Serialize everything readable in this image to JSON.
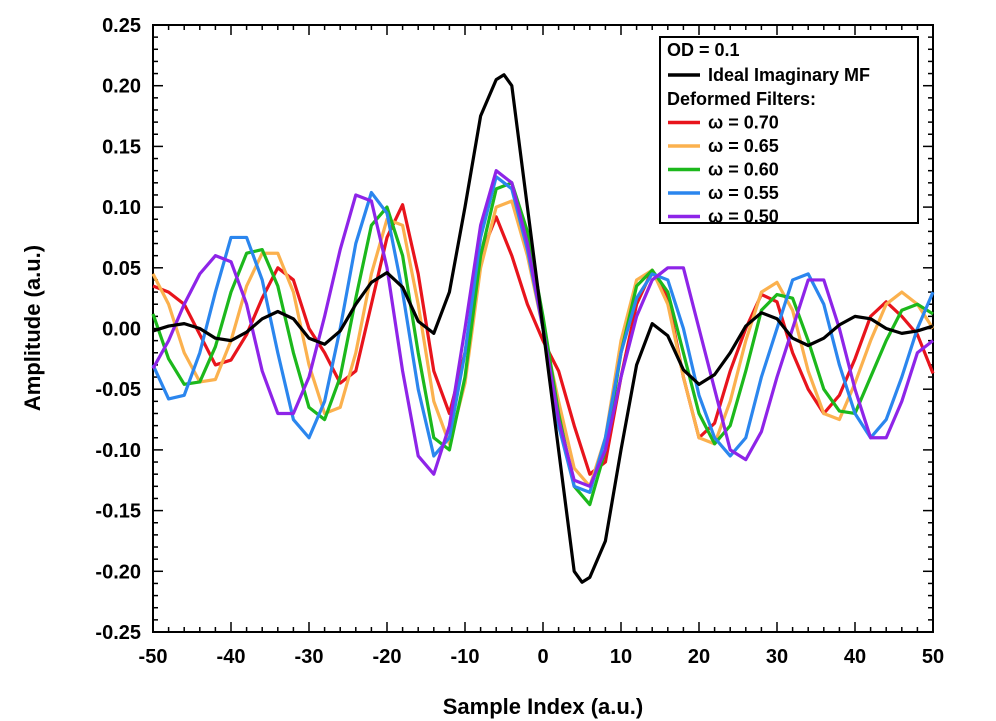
{
  "chart_data": {
    "type": "line",
    "title": "",
    "xlabel": "Sample Index (a.u.)",
    "ylabel": "Amplitude (a.u.)",
    "xlim": [
      -50,
      50
    ],
    "ylim": [
      -0.25,
      0.25
    ],
    "x_ticks": [
      -50,
      -40,
      -30,
      -20,
      -10,
      0,
      10,
      20,
      30,
      40,
      50
    ],
    "x_tick_labels": [
      "-50",
      "-40",
      "-30",
      "-20",
      "-10",
      "0",
      "10",
      "20",
      "30",
      "40",
      "50"
    ],
    "y_ticks": [
      -0.25,
      -0.2,
      -0.15,
      -0.1,
      -0.05,
      0,
      0.05,
      0.1,
      0.15,
      0.2,
      0.25
    ],
    "y_tick_labels": [
      "-0.25",
      "-0.20",
      "-0.15",
      "-0.10",
      "-0.05",
      "0.00",
      "0.05",
      "0.10",
      "0.15",
      "0.20",
      "0.25"
    ],
    "grid": false,
    "legend": {
      "position": "top-right",
      "header": "OD = 0.1",
      "subheader": "Deformed Filters:"
    },
    "series": [
      {
        "name": "Ideal Imaginary MF",
        "color": "#000000",
        "x": [
          -50,
          -48,
          -46,
          -44,
          -42,
          -40,
          -38,
          -36,
          -34,
          -32,
          -30,
          -28,
          -26,
          -24,
          -22,
          -20,
          -18,
          -16,
          -14,
          -12,
          -10,
          -8,
          -6,
          -5,
          -4,
          -2,
          0,
          2,
          4,
          5,
          6,
          8,
          10,
          12,
          14,
          16,
          18,
          20,
          22,
          24,
          26,
          28,
          30,
          32,
          34,
          36,
          38,
          40,
          42,
          44,
          46,
          48,
          50
        ],
        "y": [
          -0.002,
          0.002,
          0.004,
          0.0,
          -0.008,
          -0.01,
          -0.003,
          0.008,
          0.014,
          0.008,
          -0.008,
          -0.013,
          -0.002,
          0.02,
          0.038,
          0.046,
          0.034,
          0.006,
          -0.004,
          0.03,
          0.1,
          0.175,
          0.205,
          0.209,
          0.2,
          0.1,
          0.0,
          -0.1,
          -0.2,
          -0.209,
          -0.205,
          -0.175,
          -0.1,
          -0.03,
          0.004,
          -0.006,
          -0.034,
          -0.046,
          -0.038,
          -0.02,
          0.002,
          0.013,
          0.008,
          -0.008,
          -0.014,
          -0.008,
          0.003,
          0.01,
          0.008,
          0.0,
          -0.004,
          -0.002,
          0.002
        ]
      },
      {
        "name": "ω = 0.70",
        "color": "#e8141c",
        "x": [
          -50,
          -48,
          -46,
          -44,
          -42,
          -40,
          -38,
          -36,
          -34,
          -32,
          -30,
          -28,
          -26,
          -24,
          -22,
          -20,
          -18,
          -16,
          -14,
          -12,
          -10,
          -8,
          -6,
          -4,
          -2,
          0,
          2,
          4,
          6,
          8,
          10,
          12,
          14,
          16,
          18,
          20,
          22,
          24,
          26,
          28,
          30,
          32,
          34,
          36,
          38,
          40,
          42,
          44,
          46,
          48,
          50
        ],
        "y": [
          0.035,
          0.03,
          0.02,
          -0.005,
          -0.03,
          -0.026,
          -0.005,
          0.025,
          0.05,
          0.04,
          0.0,
          -0.02,
          -0.045,
          -0.035,
          0.02,
          0.075,
          0.102,
          0.045,
          -0.035,
          -0.07,
          -0.02,
          0.06,
          0.092,
          0.06,
          0.02,
          -0.01,
          -0.035,
          -0.08,
          -0.12,
          -0.11,
          -0.04,
          0.02,
          0.048,
          0.025,
          -0.04,
          -0.09,
          -0.078,
          -0.035,
          0.0,
          0.028,
          0.022,
          -0.02,
          -0.05,
          -0.07,
          -0.055,
          -0.025,
          0.01,
          0.022,
          0.01,
          -0.005,
          -0.037
        ]
      },
      {
        "name": "ω = 0.65",
        "color": "#fbb14e",
        "x": [
          -50,
          -48,
          -46,
          -44,
          -42,
          -40,
          -38,
          -36,
          -34,
          -32,
          -30,
          -28,
          -26,
          -24,
          -22,
          -20,
          -18,
          -16,
          -14,
          -12,
          -10,
          -8,
          -6,
          -4,
          -2,
          0,
          2,
          4,
          6,
          8,
          10,
          12,
          14,
          16,
          18,
          20,
          22,
          24,
          26,
          28,
          30,
          32,
          34,
          36,
          38,
          40,
          42,
          44,
          46,
          48,
          50
        ],
        "y": [
          0.045,
          0.02,
          -0.02,
          -0.044,
          -0.042,
          -0.01,
          0.035,
          0.062,
          0.062,
          0.03,
          -0.03,
          -0.07,
          -0.065,
          -0.02,
          0.045,
          0.09,
          0.085,
          0.02,
          -0.06,
          -0.095,
          -0.045,
          0.05,
          0.1,
          0.105,
          0.06,
          0.0,
          -0.06,
          -0.115,
          -0.13,
          -0.09,
          -0.01,
          0.04,
          0.048,
          0.02,
          -0.04,
          -0.09,
          -0.095,
          -0.06,
          -0.01,
          0.03,
          0.038,
          0.015,
          -0.035,
          -0.07,
          -0.075,
          -0.045,
          -0.01,
          0.02,
          0.03,
          0.02,
          0.0
        ]
      },
      {
        "name": "ω = 0.60",
        "color": "#1cb81c",
        "x": [
          -50,
          -48,
          -46,
          -44,
          -42,
          -40,
          -38,
          -36,
          -34,
          -32,
          -30,
          -28,
          -26,
          -24,
          -22,
          -20,
          -18,
          -16,
          -14,
          -12,
          -10,
          -8,
          -6,
          -4,
          -2,
          0,
          2,
          4,
          6,
          8,
          10,
          12,
          14,
          16,
          18,
          20,
          22,
          24,
          26,
          28,
          30,
          32,
          34,
          36,
          38,
          40,
          42,
          44,
          46,
          48,
          50
        ],
        "y": [
          0.012,
          -0.025,
          -0.046,
          -0.044,
          -0.015,
          0.03,
          0.062,
          0.065,
          0.035,
          -0.02,
          -0.065,
          -0.075,
          -0.04,
          0.025,
          0.085,
          0.1,
          0.06,
          -0.02,
          -0.09,
          -0.1,
          -0.04,
          0.06,
          0.115,
          0.12,
          0.08,
          0.01,
          -0.07,
          -0.13,
          -0.145,
          -0.1,
          -0.02,
          0.035,
          0.048,
          0.03,
          -0.02,
          -0.07,
          -0.095,
          -0.08,
          -0.035,
          0.015,
          0.028,
          0.025,
          -0.01,
          -0.05,
          -0.068,
          -0.07,
          -0.04,
          -0.01,
          0.015,
          0.02,
          0.012
        ]
      },
      {
        "name": "ω = 0.55",
        "color": "#2b86ee",
        "x": [
          -50,
          -48,
          -46,
          -44,
          -42,
          -40,
          -38,
          -36,
          -34,
          -32,
          -30,
          -28,
          -26,
          -24,
          -22,
          -20,
          -18,
          -16,
          -14,
          -12,
          -10,
          -8,
          -6,
          -4,
          -2,
          0,
          2,
          4,
          6,
          8,
          10,
          12,
          14,
          16,
          18,
          20,
          22,
          24,
          26,
          28,
          30,
          32,
          34,
          36,
          38,
          40,
          42,
          44,
          46,
          48,
          50
        ],
        "y": [
          -0.03,
          -0.058,
          -0.055,
          -0.02,
          0.03,
          0.075,
          0.075,
          0.04,
          -0.02,
          -0.075,
          -0.09,
          -0.06,
          0.0,
          0.07,
          0.112,
          0.095,
          0.03,
          -0.05,
          -0.105,
          -0.09,
          -0.02,
          0.075,
          0.125,
          0.115,
          0.065,
          0.0,
          -0.08,
          -0.13,
          -0.135,
          -0.09,
          -0.02,
          0.025,
          0.045,
          0.04,
          0.0,
          -0.055,
          -0.09,
          -0.105,
          -0.09,
          -0.04,
          0.0,
          0.04,
          0.045,
          0.02,
          -0.03,
          -0.07,
          -0.09,
          -0.075,
          -0.04,
          0.0,
          0.03
        ]
      },
      {
        "name": "ω = 0.50",
        "color": "#8e24e8",
        "x": [
          -50,
          -48,
          -46,
          -44,
          -42,
          -40,
          -38,
          -36,
          -34,
          -32,
          -30,
          -28,
          -26,
          -24,
          -22,
          -20,
          -18,
          -16,
          -14,
          -12,
          -10,
          -8,
          -6,
          -4,
          -2,
          0,
          2,
          4,
          6,
          8,
          10,
          12,
          14,
          16,
          18,
          20,
          22,
          24,
          26,
          28,
          30,
          32,
          34,
          36,
          38,
          40,
          42,
          44,
          46,
          48,
          50
        ],
        "y": [
          -0.033,
          -0.01,
          0.02,
          0.045,
          0.06,
          0.055,
          0.02,
          -0.035,
          -0.07,
          -0.07,
          -0.04,
          0.01,
          0.065,
          0.11,
          0.105,
          0.05,
          -0.035,
          -0.105,
          -0.12,
          -0.08,
          0.0,
          0.085,
          0.13,
          0.12,
          0.07,
          0.0,
          -0.075,
          -0.125,
          -0.13,
          -0.1,
          -0.04,
          0.01,
          0.04,
          0.05,
          0.05,
          0.0,
          -0.05,
          -0.1,
          -0.108,
          -0.085,
          -0.04,
          0.0,
          0.04,
          0.04,
          0.0,
          -0.05,
          -0.09,
          -0.09,
          -0.06,
          -0.02,
          -0.01
        ]
      }
    ]
  }
}
